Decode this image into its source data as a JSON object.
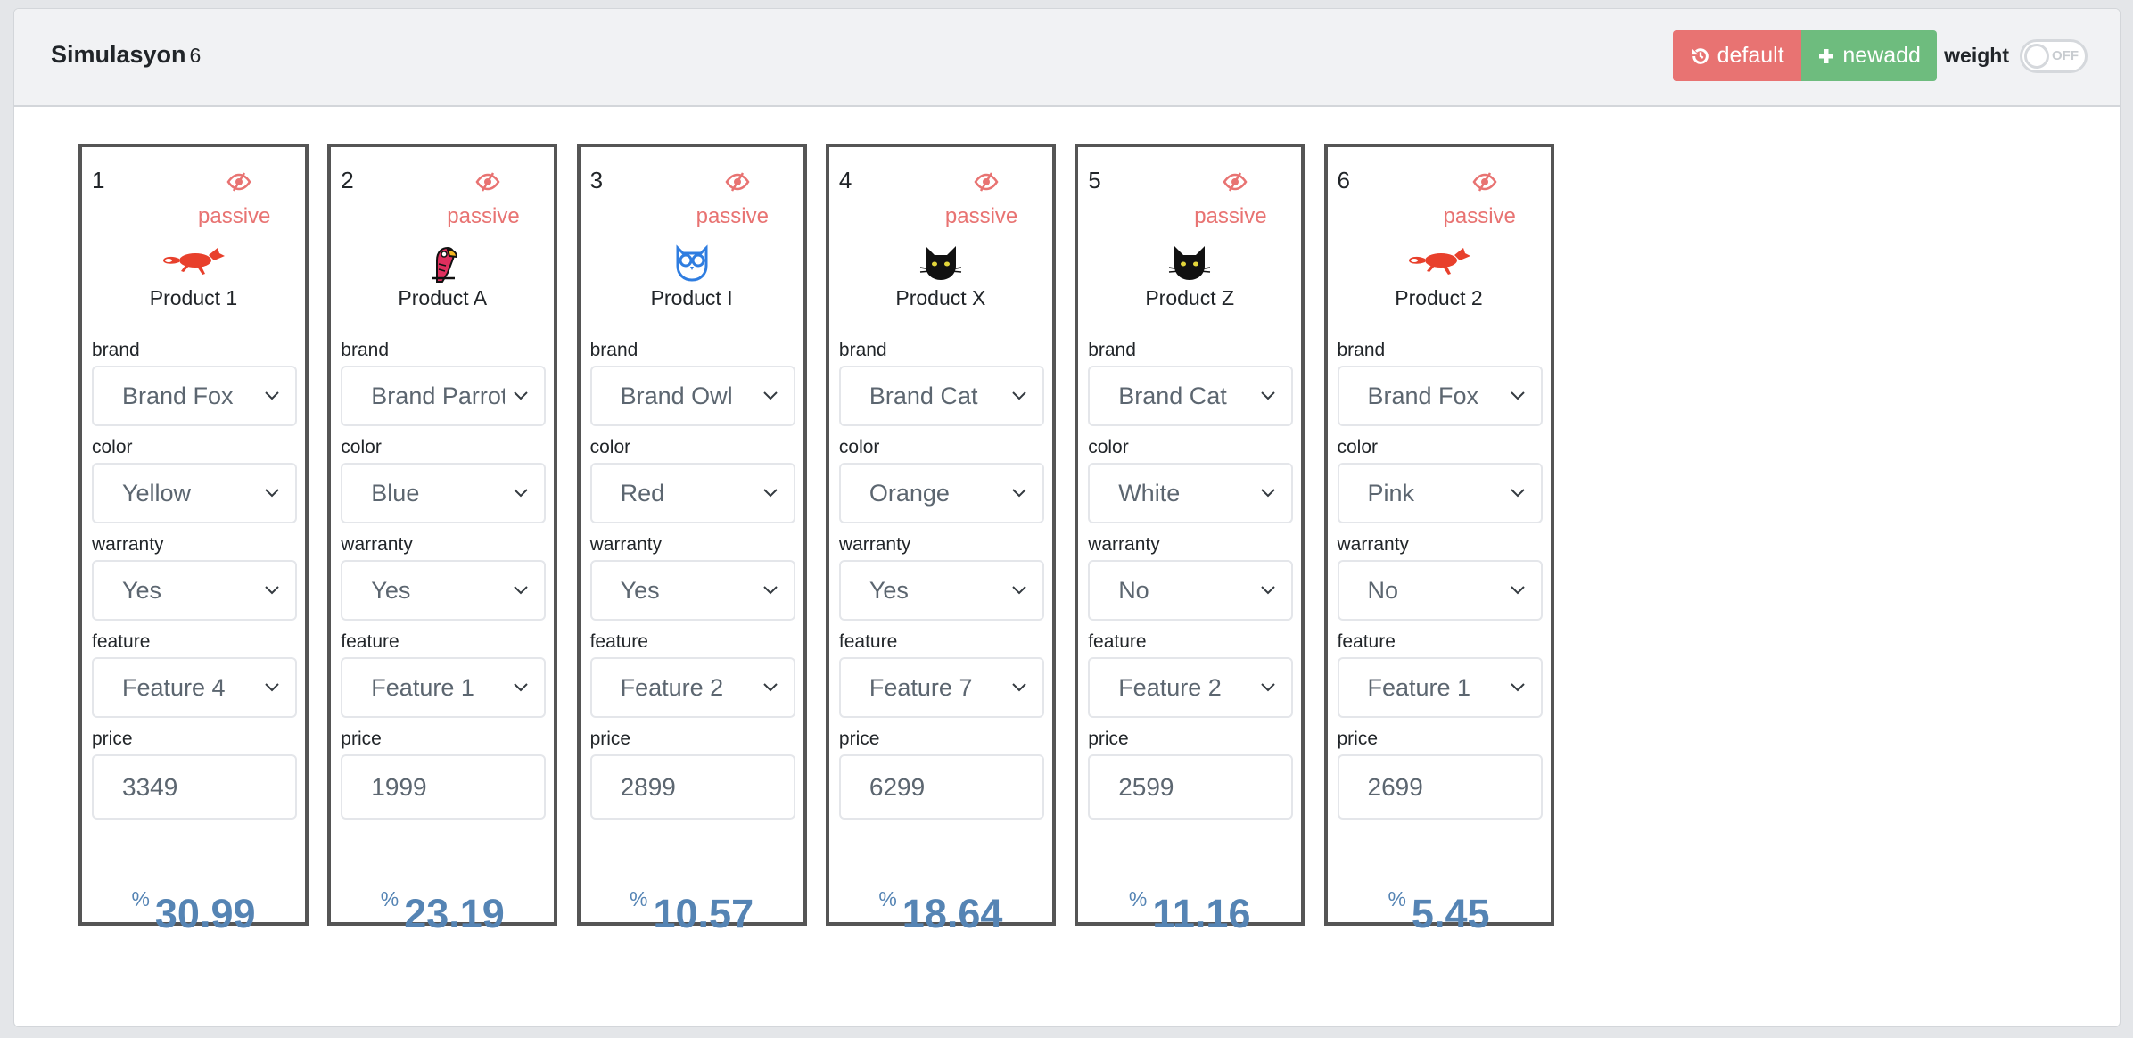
{
  "header": {
    "title": "Simulasyon",
    "count": "6",
    "default_label": "default",
    "newadd_label": "newadd",
    "weight_label": "weight",
    "weight_toggle": "OFF"
  },
  "labels": {
    "brand": "brand",
    "color": "color",
    "warranty": "warranty",
    "feature": "feature",
    "price": "price",
    "percent_symbol": "%"
  },
  "colors": {
    "passive": "#e87372",
    "percent": "#5584b4",
    "default_button": "#e87372",
    "newadd_button": "#6ebc7e"
  },
  "cards": [
    {
      "index": "1",
      "status": "passive",
      "icon": "fox-icon",
      "name": "Product 1",
      "brand": "Brand Fox",
      "color": "Yellow",
      "warranty": "Yes",
      "feature": "Feature 4",
      "price": "3349",
      "percent": "30.99"
    },
    {
      "index": "2",
      "status": "passive",
      "icon": "parrot-icon",
      "name": "Product A",
      "brand": "Brand Parrot",
      "color": "Blue",
      "warranty": "Yes",
      "feature": "Feature 1",
      "price": "1999",
      "percent": "23.19"
    },
    {
      "index": "3",
      "status": "passive",
      "icon": "owl-icon",
      "name": "Product I",
      "brand": "Brand Owl",
      "color": "Red",
      "warranty": "Yes",
      "feature": "Feature 2",
      "price": "2899",
      "percent": "10.57"
    },
    {
      "index": "4",
      "status": "passive",
      "icon": "cat-icon",
      "name": "Product X",
      "brand": "Brand Cat",
      "color": "Orange",
      "warranty": "Yes",
      "feature": "Feature 7",
      "price": "6299",
      "percent": "18.64"
    },
    {
      "index": "5",
      "status": "passive",
      "icon": "cat-icon",
      "name": "Product Z",
      "brand": "Brand Cat",
      "color": "White",
      "warranty": "No",
      "feature": "Feature 2",
      "price": "2599",
      "percent": "11.16"
    },
    {
      "index": "6",
      "status": "passive",
      "icon": "fox-icon",
      "name": "Product 2",
      "brand": "Brand Fox",
      "color": "Pink",
      "warranty": "No",
      "feature": "Feature 1",
      "price": "2699",
      "percent": "5.45"
    }
  ]
}
